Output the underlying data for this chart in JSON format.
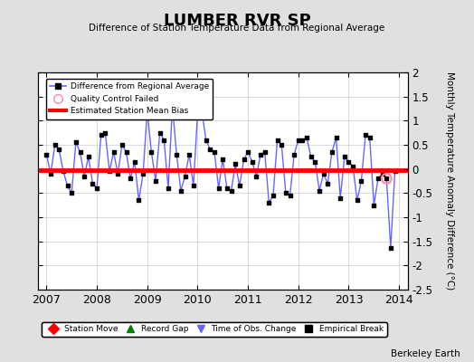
{
  "title": "LUMBER RVR SP",
  "subtitle": "Difference of Station Temperature Data from Regional Average",
  "ylabel": "Monthly Temperature Anomaly Difference (°C)",
  "ylim": [
    -2.5,
    2.0
  ],
  "xlim": [
    2006.83,
    2014.17
  ],
  "yticks": [
    -2.5,
    -2.0,
    -1.5,
    -1.0,
    -0.5,
    0,
    0.5,
    1.0,
    1.5,
    2.0
  ],
  "xticks": [
    2007,
    2008,
    2009,
    2010,
    2011,
    2012,
    2013,
    2014
  ],
  "bias_value": -0.03,
  "qc_failed_x": 2013.75,
  "qc_failed_y": -0.2,
  "line_color": "#6666ff",
  "marker_color": "#000000",
  "bias_color": "#ff0000",
  "background_color": "#e0e0e0",
  "plot_bg_color": "#ffffff",
  "watermark": "Berkeley Earth",
  "time_values": [
    2007.0,
    2007.083,
    2007.167,
    2007.25,
    2007.333,
    2007.417,
    2007.5,
    2007.583,
    2007.667,
    2007.75,
    2007.833,
    2007.917,
    2008.0,
    2008.083,
    2008.167,
    2008.25,
    2008.333,
    2008.417,
    2008.5,
    2008.583,
    2008.667,
    2008.75,
    2008.833,
    2008.917,
    2009.0,
    2009.083,
    2009.167,
    2009.25,
    2009.333,
    2009.417,
    2009.5,
    2009.583,
    2009.667,
    2009.75,
    2009.833,
    2009.917,
    2010.0,
    2010.083,
    2010.167,
    2010.25,
    2010.333,
    2010.417,
    2010.5,
    2010.583,
    2010.667,
    2010.75,
    2010.833,
    2010.917,
    2011.0,
    2011.083,
    2011.167,
    2011.25,
    2011.333,
    2011.417,
    2011.5,
    2011.583,
    2011.667,
    2011.75,
    2011.833,
    2011.917,
    2012.0,
    2012.083,
    2012.167,
    2012.25,
    2012.333,
    2012.417,
    2012.5,
    2012.583,
    2012.667,
    2012.75,
    2012.833,
    2012.917,
    2013.0,
    2013.083,
    2013.167,
    2013.25,
    2013.333,
    2013.417,
    2013.5,
    2013.583,
    2013.667,
    2013.75,
    2013.833,
    2013.917
  ],
  "data_values": [
    0.3,
    -0.1,
    0.5,
    0.4,
    -0.05,
    -0.35,
    -0.5,
    0.55,
    0.35,
    -0.15,
    0.25,
    -0.3,
    -0.4,
    0.7,
    0.75,
    -0.05,
    0.35,
    -0.1,
    0.5,
    0.35,
    -0.2,
    0.15,
    -0.65,
    -0.1,
    1.2,
    0.35,
    -0.25,
    0.75,
    0.6,
    -0.4,
    1.3,
    0.3,
    -0.45,
    -0.15,
    0.3,
    -0.35,
    1.15,
    1.2,
    0.6,
    0.4,
    0.35,
    -0.4,
    0.2,
    -0.4,
    -0.45,
    0.1,
    -0.35,
    0.2,
    0.35,
    0.15,
    -0.15,
    0.3,
    0.35,
    -0.7,
    -0.55,
    0.6,
    0.5,
    -0.5,
    -0.55,
    0.3,
    0.6,
    0.6,
    0.65,
    0.25,
    0.15,
    -0.45,
    -0.1,
    -0.3,
    0.35,
    0.65,
    -0.6,
    0.25,
    0.15,
    0.05,
    -0.65,
    -0.25,
    0.7,
    0.65,
    -0.75,
    -0.2,
    -0.1,
    -0.2,
    -1.63,
    -0.05
  ]
}
